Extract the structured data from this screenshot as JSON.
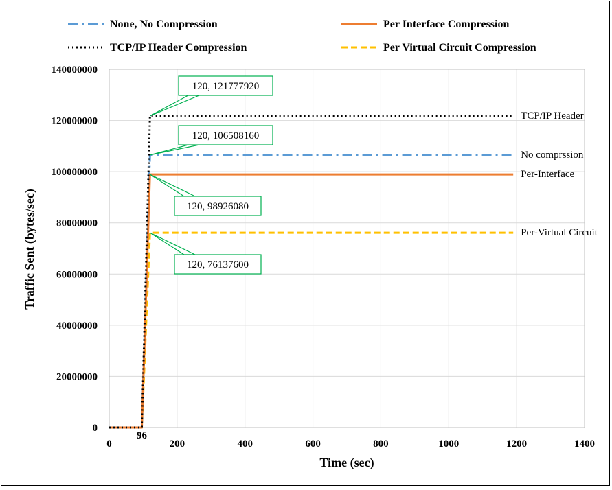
{
  "chart_data": {
    "type": "line",
    "title": "",
    "xlabel": "Time (sec)",
    "ylabel": "Traffic  Sent (bytes/sec)",
    "xlim": [
      0,
      1400
    ],
    "ylim": [
      0,
      140000000
    ],
    "x_ticks": [
      0,
      200,
      400,
      600,
      800,
      1000,
      1200,
      1400
    ],
    "y_ticks": [
      0,
      20000000,
      40000000,
      60000000,
      80000000,
      100000000,
      120000000,
      140000000
    ],
    "x_marker_label": "96",
    "x_marker_value": 96,
    "grid": true,
    "legend_position": "top",
    "series": [
      {
        "name": "None, No Compression",
        "end_label": "No comprssion",
        "color": "#5B9BD5",
        "style": "dashdot",
        "points": [
          [
            0,
            0
          ],
          [
            96,
            0
          ],
          [
            120,
            106508160
          ],
          [
            1190,
            106508160
          ]
        ]
      },
      {
        "name": "Per Interface Compression",
        "end_label": "Per-Interface",
        "color": "#ED7D31",
        "style": "solid",
        "points": [
          [
            0,
            0
          ],
          [
            96,
            0
          ],
          [
            120,
            98926080
          ],
          [
            1190,
            98926080
          ]
        ]
      },
      {
        "name": "TCP/IP Header Compression",
        "end_label": "TCP/IP Header",
        "color": "#000000",
        "style": "dotted",
        "points": [
          [
            0,
            0
          ],
          [
            96,
            0
          ],
          [
            120,
            121777920
          ],
          [
            1190,
            121777920
          ]
        ]
      },
      {
        "name": "Per Virtual Circuit Compression",
        "end_label": "Per-Virtual Circuit",
        "color": "#FFC000",
        "style": "dashed",
        "points": [
          [
            0,
            0
          ],
          [
            96,
            0
          ],
          [
            120,
            76137600
          ],
          [
            1190,
            76137600
          ]
        ]
      }
    ],
    "annotations": [
      {
        "text": "120, 121777920",
        "x": 120,
        "y": 121777920
      },
      {
        "text": "120, 106508160",
        "x": 120,
        "y": 106508160
      },
      {
        "text": "120, 98926080",
        "x": 120,
        "y": 98926080
      },
      {
        "text": "120, 76137600",
        "x": 120,
        "y": 76137600
      }
    ]
  }
}
